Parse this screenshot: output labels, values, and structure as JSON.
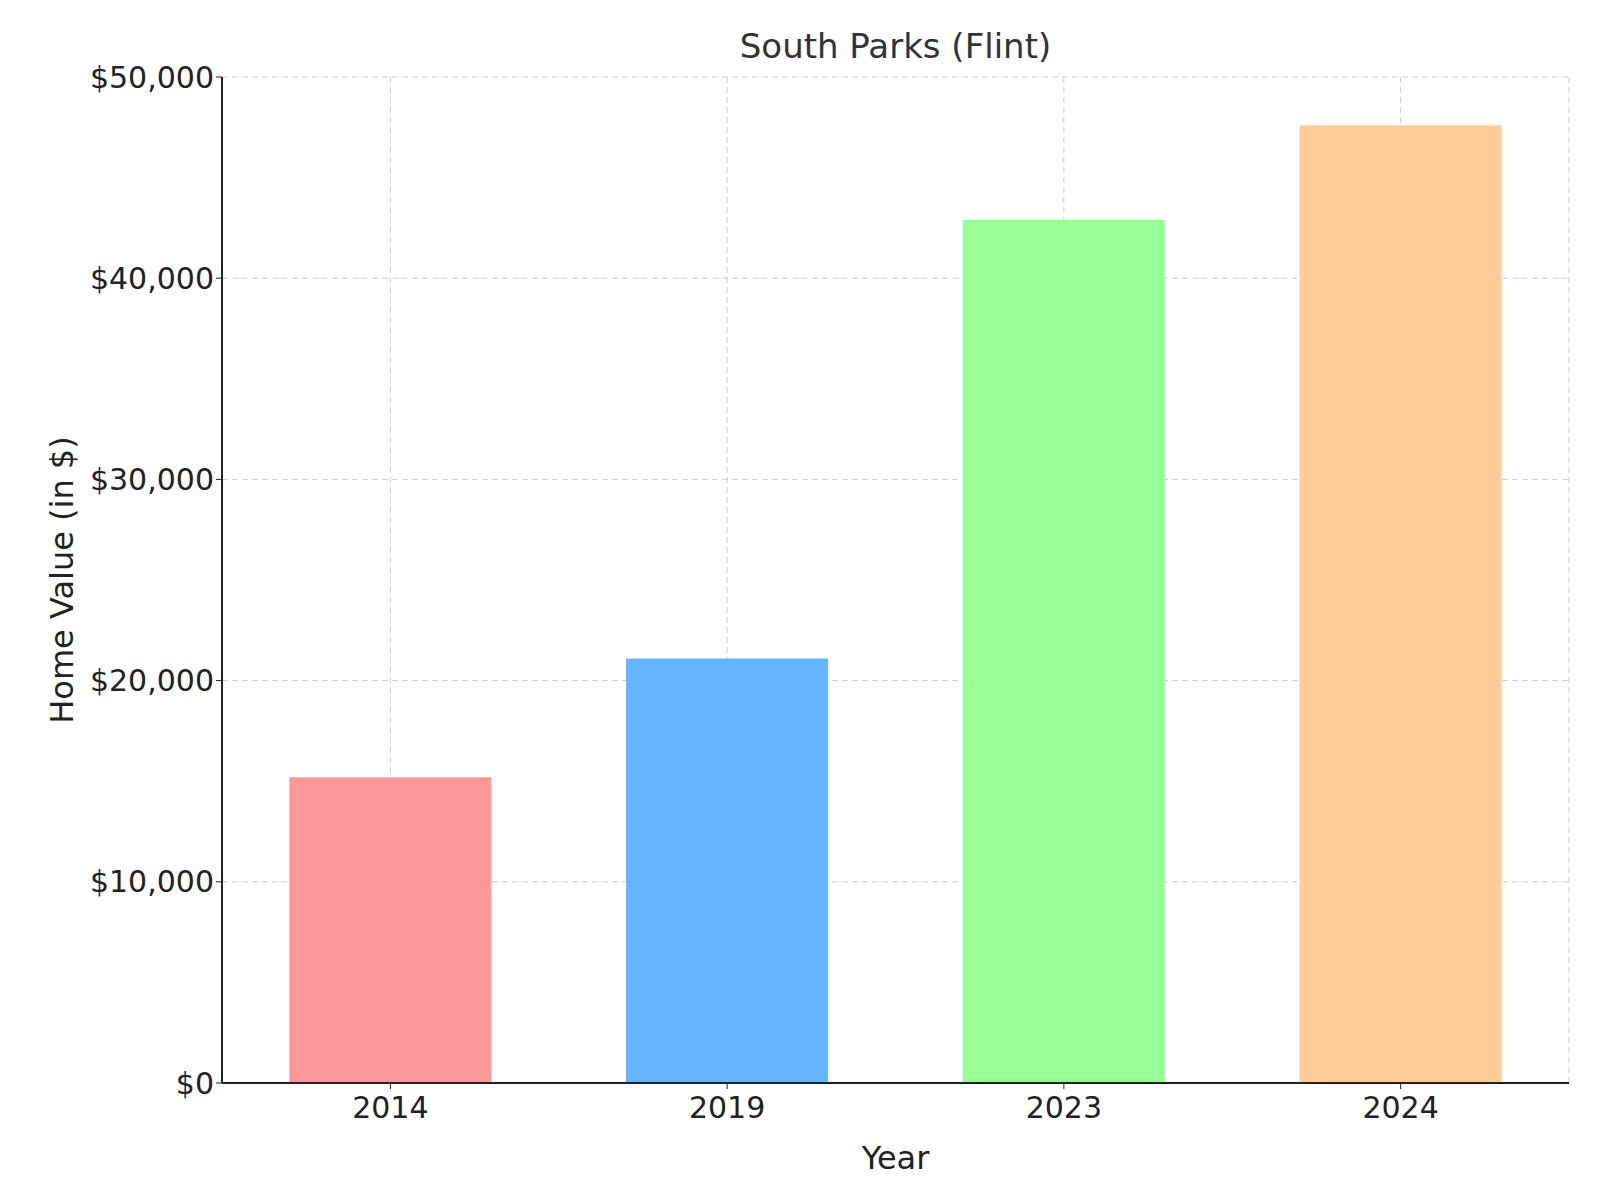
{
  "chart_data": {
    "type": "bar",
    "title": "South Parks (Flint)",
    "x_label": "Year",
    "y_label": "Home Value (in $)",
    "categories": [
      "2014",
      "2019",
      "2023",
      "2024"
    ],
    "values": [
      15200,
      21100,
      42900,
      47600
    ],
    "colors": [
      "#ff9999",
      "#66b3ff",
      "#99ff99",
      "#ffcc99"
    ],
    "ylim": [
      0,
      50000
    ],
    "yticks": [
      {
        "value": 0,
        "label": "$0"
      },
      {
        "value": 10000,
        "label": "$10,000"
      },
      {
        "value": 20000,
        "label": "$20,000"
      },
      {
        "value": 30000,
        "label": "$30,000"
      },
      {
        "value": 40000,
        "label": "$40,000"
      },
      {
        "value": 50000,
        "label": "$50,000"
      }
    ],
    "grid": true
  }
}
